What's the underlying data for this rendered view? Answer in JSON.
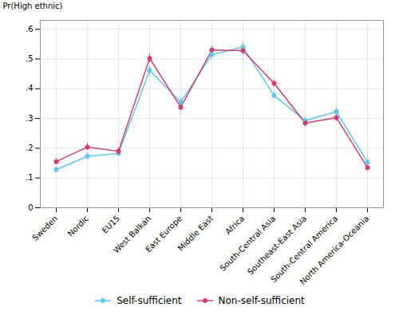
{
  "chart_data": {
    "type": "line",
    "categories": [
      "Sweden",
      "Nordic",
      "EU15",
      "West Balkan",
      "East Europe",
      "Middle East",
      "Africa",
      "South-Central Asia",
      "Southeast-East Asia",
      "South-Central America",
      "North America-Oceania"
    ],
    "series": [
      {
        "name": "Self-sufficient",
        "color": "#5bc8f5",
        "marker": "circle",
        "values": [
          0.128,
          0.173,
          0.183,
          0.462,
          0.355,
          0.515,
          0.54,
          0.377,
          0.293,
          0.323,
          0.153
        ],
        "error": [
          0.01,
          0.012,
          0.01,
          0.015,
          0.015,
          0.015,
          0.015,
          0.012,
          0.012,
          0.015,
          0.012
        ]
      },
      {
        "name": "Non-self-sufficient",
        "color": "#d63b6e",
        "marker": "circle",
        "values": [
          0.155,
          0.204,
          0.19,
          0.502,
          0.338,
          0.53,
          0.528,
          0.418,
          0.285,
          0.303,
          0.135
        ],
        "error": [
          0.01,
          0.012,
          0.01,
          0.015,
          0.013,
          0.013,
          0.013,
          0.012,
          0.012,
          0.012,
          0.01
        ]
      }
    ],
    "ylabel": "Pr(High ethnic)",
    "ylim": [
      0,
      0.63
    ],
    "yticks": [
      0,
      {
        "value": 0.1,
        "label": ".1"
      },
      {
        "value": 0.2,
        "label": ".2"
      },
      {
        "value": 0.3,
        "label": ".3"
      },
      {
        "value": 0.4,
        "label": ".4"
      },
      {
        "value": 0.5,
        "label": ".5"
      },
      {
        "value": 0.6,
        "label": ".6"
      }
    ],
    "grid": true,
    "legend": "bottom"
  }
}
